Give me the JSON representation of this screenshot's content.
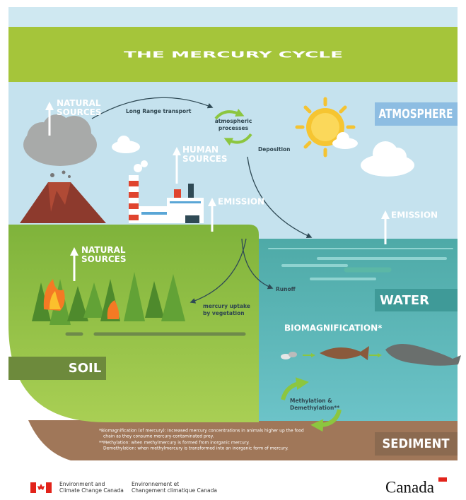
{
  "header": {
    "title": "THE MERCURY CYCLE"
  },
  "atmosphere": {
    "zone": "ATMOSPHERE",
    "natural_sources": [
      "NATURAL",
      "SOURCES"
    ],
    "long_range": "Long Range transport",
    "processes": [
      "atmospheric",
      "processes"
    ],
    "human_sources": [
      "HUMAN",
      "SOURCES"
    ],
    "deposition": "Deposition",
    "emission": "EMISSION"
  },
  "water": {
    "zone": "WATER",
    "emission": "EMISSION",
    "runoff": "Runoff",
    "biomagnification": "BIOMAGNIFICATION*"
  },
  "soil": {
    "zone": "SOIL",
    "natural_sources": [
      "NATURAL",
      "SOURCES"
    ],
    "uptake": [
      "mercury uptake",
      "by vegetation"
    ]
  },
  "sediment": {
    "zone": "SEDIMENT",
    "methylation": [
      "Methylation &",
      "Demethylation**"
    ]
  },
  "footnotes": [
    "*Biomagnification (of mercury): Increased mercury concentrations in animals higher up the food",
    "chain as they consume mercury-contaminated prey.",
    "**Methylation: when methylmercury is formed from inorganic mercury.",
    "Demethylation: when methylmercury is transformed into an inorganic form of mercury."
  ],
  "footer": {
    "department_en": [
      "Environment and",
      "Climate Change Canada"
    ],
    "department_fr": [
      "Environnement et",
      "Changement climatique Canada"
    ],
    "wordmark": "Canada"
  }
}
